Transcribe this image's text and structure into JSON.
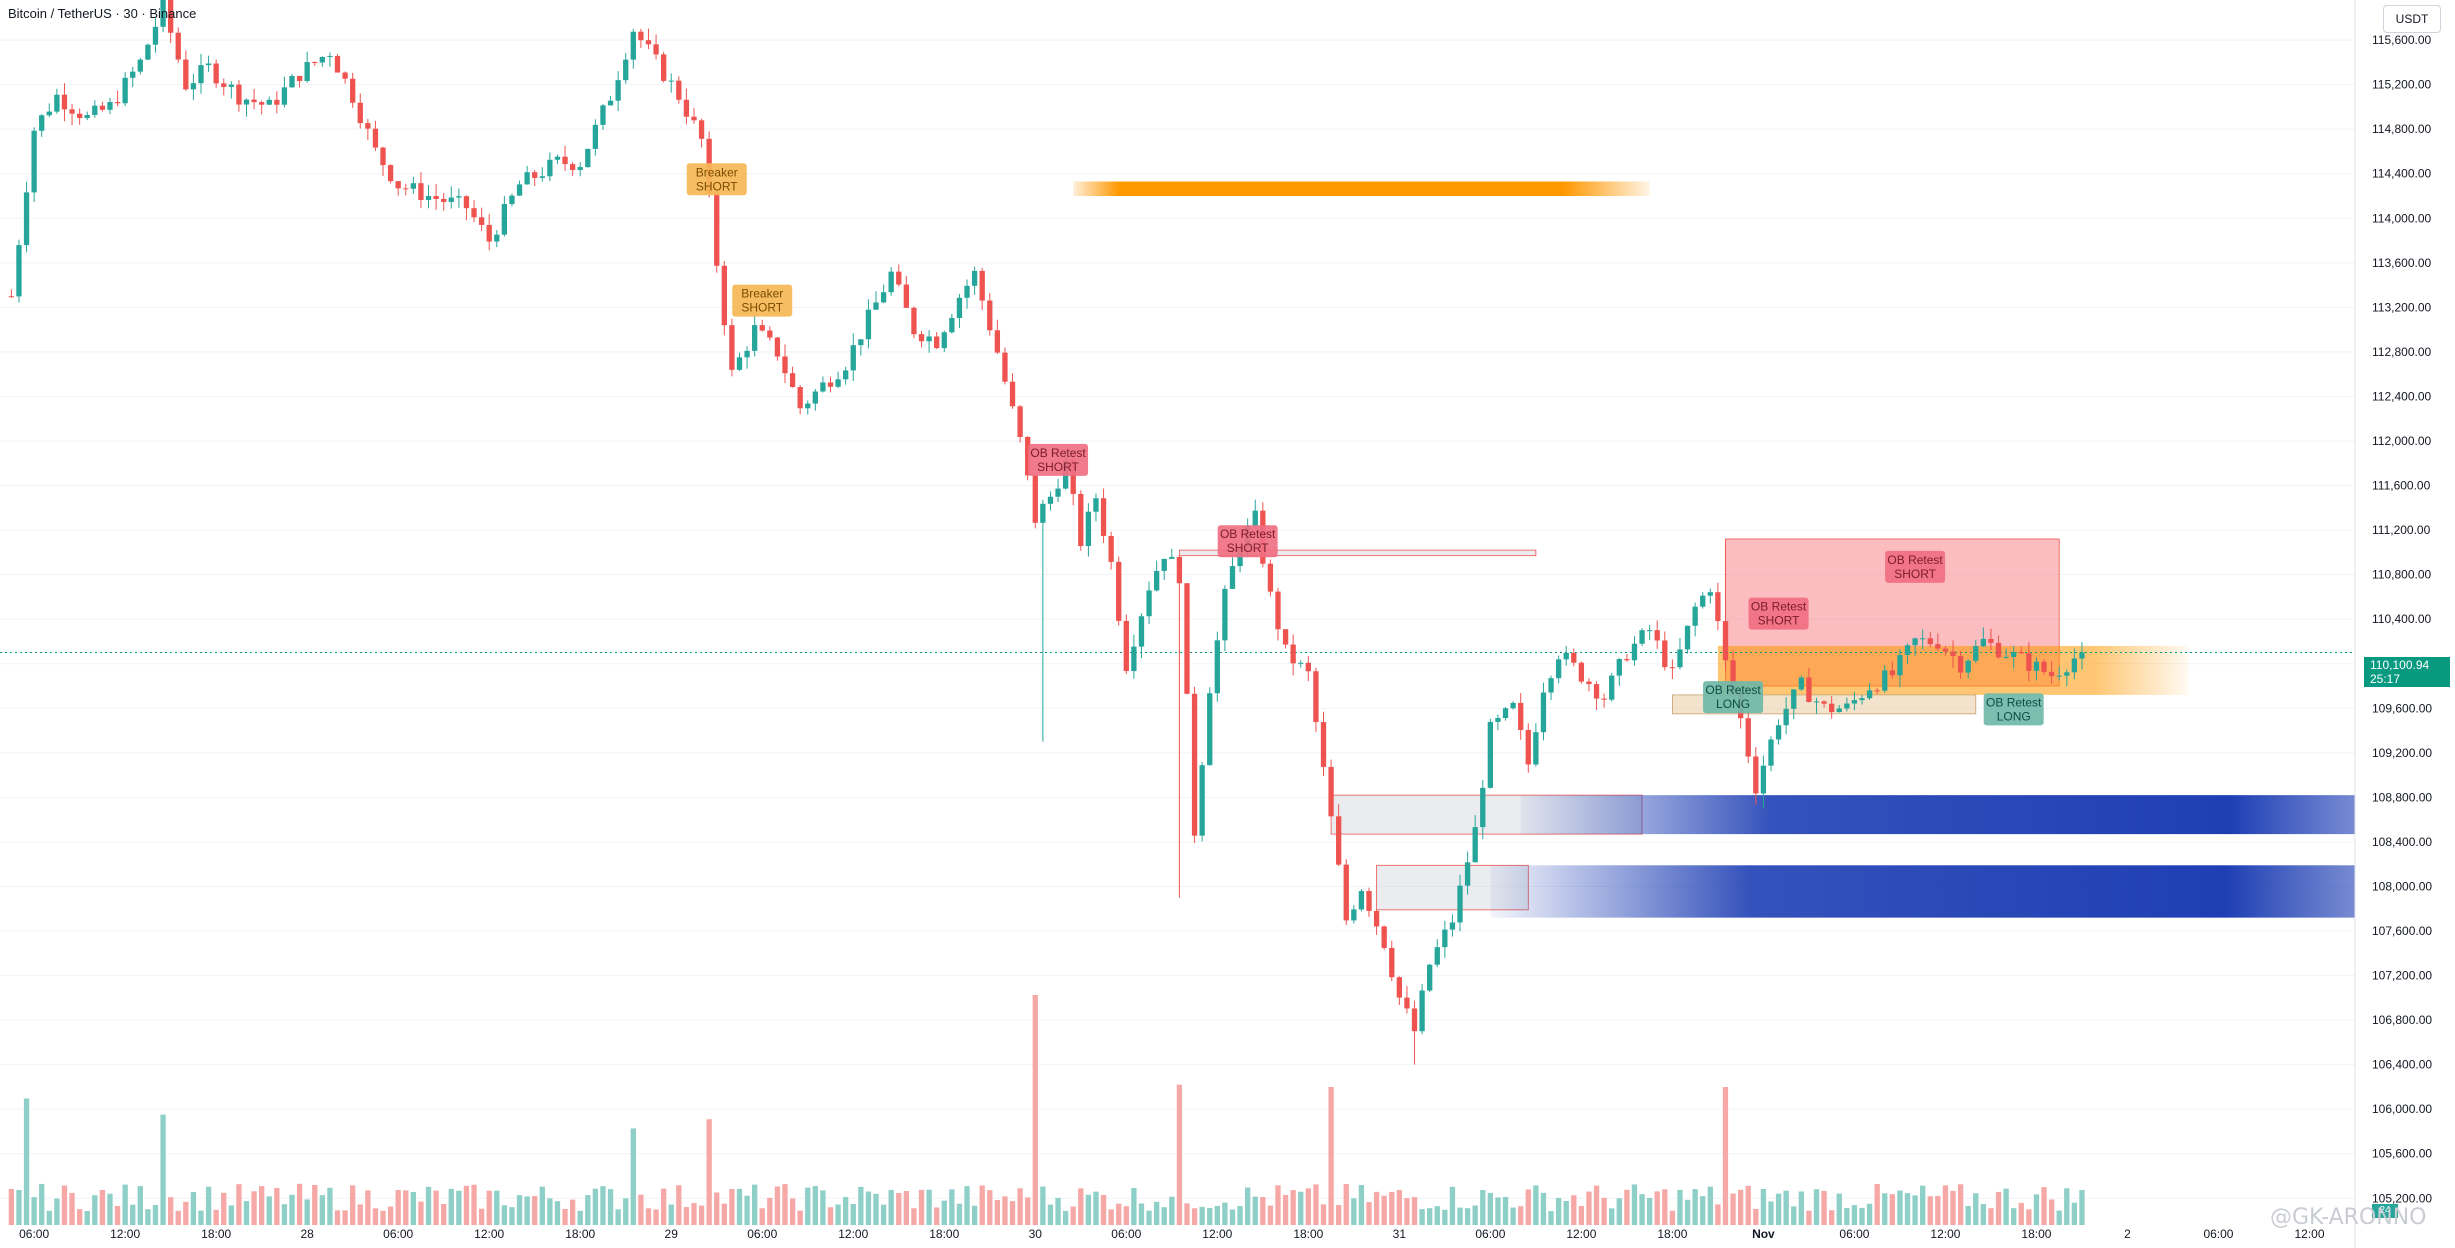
{
  "header": {
    "title": "Bitcoin / TetherUS · 30 · Binance",
    "currency_button": "USDT"
  },
  "price_tag": {
    "price": "110,100.94",
    "countdown": "25:17"
  },
  "volume_tag": "24",
  "watermark": "@GK-ARONNO",
  "signals": [
    {
      "line1": "Breaker",
      "line2": "SHORT",
      "kind": "breaker"
    },
    {
      "line1": "Breaker",
      "line2": "SHORT",
      "kind": "breaker"
    },
    {
      "line1": "OB Retest",
      "line2": "SHORT",
      "kind": "short"
    },
    {
      "line1": "OB Retest",
      "line2": "SHORT",
      "kind": "short"
    },
    {
      "line1": "OB Retest",
      "line2": "SHORT",
      "kind": "short"
    },
    {
      "line1": "OB Retest",
      "line2": "SHORT",
      "kind": "short"
    },
    {
      "line1": "OB Retest",
      "line2": "LONG",
      "kind": "long"
    },
    {
      "line1": "OB Retest",
      "line2": "LONG",
      "kind": "long"
    }
  ],
  "colors": {
    "up": "#26a69a",
    "down": "#ef5350",
    "vol_up": "#8ecfc7",
    "vol_down": "#f6a8a6",
    "orange_zone": "#ff9800",
    "blue_zone": "#1e3fb4",
    "red_zone": "#f77c80",
    "price_line": "#089981"
  },
  "chart_data": {
    "type": "candlestick",
    "symbol": "Bitcoin / TetherUS",
    "interval": "30",
    "exchange": "Binance",
    "y_axis": {
      "ticks": [
        105200,
        105600,
        106000,
        106400,
        106800,
        107200,
        107600,
        108000,
        108400,
        108800,
        109200,
        109600,
        110000,
        110400,
        110800,
        111200,
        111600,
        112000,
        112400,
        112800,
        113200,
        113600,
        114000,
        114400,
        114800,
        115200,
        115600
      ],
      "tick_labels": [
        "105,200.00",
        "105,600.00",
        "106,000.00",
        "106,400.00",
        "106,800.00",
        "107,200.00",
        "107,600.00",
        "108,000.00",
        "108,400.00",
        "108,800.00",
        "109,200.00",
        "109,600.00",
        "110,000.00",
        "110,400.00",
        "110,800.00",
        "111,200.00",
        "111,600.00",
        "112,000.00",
        "112,400.00",
        "112,800.00",
        "113,200.00",
        "113,600.00",
        "114,000.00",
        "114,400.00",
        "114,800.00",
        "115,200.00",
        "115,600.00"
      ],
      "range": [
        104960,
        115960
      ]
    },
    "x_axis": {
      "tick_labels": [
        "06:00",
        "12:00",
        "18:00",
        "28",
        "06:00",
        "12:00",
        "18:00",
        "29",
        "06:00",
        "12:00",
        "18:00",
        "30",
        "06:00",
        "12:00",
        "18:00",
        "31",
        "06:00",
        "12:00",
        "18:00",
        "Nov",
        "06:00",
        "12:00",
        "18:00",
        "2",
        "06:00",
        "12:00"
      ],
      "tick_index": [
        3,
        15,
        27,
        39,
        51,
        63,
        75,
        87,
        99,
        111,
        123,
        135,
        147,
        159,
        171,
        183,
        195,
        207,
        219,
        231,
        243,
        255,
        267,
        279,
        291,
        303
      ],
      "first_bar_index": 0,
      "index_range": [
        -1.5,
        309
      ]
    },
    "last_price": 110100.94,
    "close_path": [
      {
        "i": 0,
        "p": 113300
      },
      {
        "i": 3,
        "p": 114800
      },
      {
        "i": 6,
        "p": 115100
      },
      {
        "i": 10,
        "p": 114900
      },
      {
        "i": 13,
        "p": 115000
      },
      {
        "i": 17,
        "p": 115400
      },
      {
        "i": 20,
        "p": 115900
      },
      {
        "i": 23,
        "p": 115200
      },
      {
        "i": 26,
        "p": 115350
      },
      {
        "i": 30,
        "p": 115100
      },
      {
        "i": 34,
        "p": 115000
      },
      {
        "i": 38,
        "p": 115300
      },
      {
        "i": 42,
        "p": 115500
      },
      {
        "i": 45,
        "p": 115100
      },
      {
        "i": 48,
        "p": 114600
      },
      {
        "i": 51,
        "p": 114300
      },
      {
        "i": 55,
        "p": 114200
      },
      {
        "i": 60,
        "p": 114100
      },
      {
        "i": 63,
        "p": 113800
      },
      {
        "i": 67,
        "p": 114300
      },
      {
        "i": 72,
        "p": 114500
      },
      {
        "i": 75,
        "p": 114500
      },
      {
        "i": 79,
        "p": 115100
      },
      {
        "i": 82,
        "p": 115700
      },
      {
        "i": 85,
        "p": 115400
      },
      {
        "i": 88,
        "p": 115100
      },
      {
        "i": 91,
        "p": 114700
      },
      {
        "i": 93,
        "p": 113600
      },
      {
        "i": 95,
        "p": 112600
      },
      {
        "i": 98,
        "p": 113000
      },
      {
        "i": 101,
        "p": 112800
      },
      {
        "i": 104,
        "p": 112300
      },
      {
        "i": 107,
        "p": 112500
      },
      {
        "i": 110,
        "p": 112700
      },
      {
        "i": 113,
        "p": 113100
      },
      {
        "i": 116,
        "p": 113500
      },
      {
        "i": 119,
        "p": 113000
      },
      {
        "i": 122,
        "p": 112900
      },
      {
        "i": 125,
        "p": 113300
      },
      {
        "i": 127,
        "p": 113500
      },
      {
        "i": 130,
        "p": 112800
      },
      {
        "i": 133,
        "p": 112000
      },
      {
        "i": 135,
        "p": 111300
      },
      {
        "i": 137,
        "p": 111500
      },
      {
        "i": 139,
        "p": 111800
      },
      {
        "i": 141,
        "p": 111100
      },
      {
        "i": 143,
        "p": 111500
      },
      {
        "i": 145,
        "p": 110900
      },
      {
        "i": 147,
        "p": 110000
      },
      {
        "i": 150,
        "p": 110700
      },
      {
        "i": 152,
        "p": 111000
      },
      {
        "i": 154,
        "p": 110800
      },
      {
        "i": 156,
        "p": 108500
      },
      {
        "i": 158,
        "p": 109800
      },
      {
        "i": 160,
        "p": 110600
      },
      {
        "i": 162,
        "p": 111100
      },
      {
        "i": 164,
        "p": 111300
      },
      {
        "i": 166,
        "p": 110600
      },
      {
        "i": 168,
        "p": 110100
      },
      {
        "i": 171,
        "p": 109900
      },
      {
        "i": 174,
        "p": 108600
      },
      {
        "i": 176,
        "p": 107700
      },
      {
        "i": 178,
        "p": 108000
      },
      {
        "i": 181,
        "p": 107500
      },
      {
        "i": 183,
        "p": 107000
      },
      {
        "i": 185,
        "p": 106700
      },
      {
        "i": 187,
        "p": 107300
      },
      {
        "i": 190,
        "p": 107700
      },
      {
        "i": 193,
        "p": 108500
      },
      {
        "i": 195,
        "p": 109400
      },
      {
        "i": 198,
        "p": 109600
      },
      {
        "i": 200,
        "p": 109100
      },
      {
        "i": 202,
        "p": 109800
      },
      {
        "i": 204,
        "p": 110100
      },
      {
        "i": 207,
        "p": 109900
      },
      {
        "i": 210,
        "p": 109700
      },
      {
        "i": 213,
        "p": 110100
      },
      {
        "i": 216,
        "p": 110300
      },
      {
        "i": 219,
        "p": 109900
      },
      {
        "i": 222,
        "p": 110500
      },
      {
        "i": 224,
        "p": 110700
      },
      {
        "i": 226,
        "p": 110000
      },
      {
        "i": 228,
        "p": 109500
      },
      {
        "i": 230,
        "p": 108900
      },
      {
        "i": 233,
        "p": 109500
      },
      {
        "i": 236,
        "p": 109800
      },
      {
        "i": 239,
        "p": 109600
      },
      {
        "i": 242,
        "p": 109600
      },
      {
        "i": 245,
        "p": 109800
      },
      {
        "i": 248,
        "p": 109900
      },
      {
        "i": 251,
        "p": 110200
      },
      {
        "i": 254,
        "p": 110200
      },
      {
        "i": 257,
        "p": 110000
      },
      {
        "i": 260,
        "p": 110200
      },
      {
        "i": 263,
        "p": 110100
      },
      {
        "i": 266,
        "p": 110000
      },
      {
        "i": 269,
        "p": 109900
      },
      {
        "i": 271,
        "p": 110000
      },
      {
        "i": 273,
        "p": 110100
      }
    ],
    "notable_spikes": [
      {
        "i": 136,
        "low": 109300
      },
      {
        "i": 154,
        "low": 107900
      },
      {
        "i": 185,
        "low": 106400
      },
      {
        "i": 226,
        "high": 111100
      },
      {
        "i": 231,
        "low": 108700
      }
    ],
    "volume_spikes": [
      {
        "i": 2,
        "v": 0.55
      },
      {
        "i": 20,
        "v": 0.48
      },
      {
        "i": 82,
        "v": 0.42
      },
      {
        "i": 92,
        "v": 0.46
      },
      {
        "i": 135,
        "v": 1.0
      },
      {
        "i": 154,
        "v": 0.61
      },
      {
        "i": 174,
        "v": 0.6
      },
      {
        "i": 226,
        "v": 0.6
      }
    ],
    "zones": [
      {
        "kind": "orange_band",
        "i1": 140,
        "i2": 216,
        "p1": 114200,
        "p2": 114330
      },
      {
        "kind": "grey_box",
        "i1": 154,
        "i2": 201,
        "p1": 110970,
        "p2": 111020
      },
      {
        "kind": "grey_box",
        "i1": 174,
        "i2": 215,
        "p1": 108470,
        "p2": 108820
      },
      {
        "kind": "grey_box",
        "i1": 180,
        "i2": 200,
        "p1": 107790,
        "p2": 108190
      },
      {
        "kind": "blue_band",
        "i1": 199,
        "i2": 309,
        "p1": 108470,
        "p2": 108820
      },
      {
        "kind": "blue_band",
        "i1": 195,
        "i2": 309,
        "p1": 107720,
        "p2": 108190
      },
      {
        "kind": "red_box",
        "i1": 226,
        "i2": 270,
        "p1": 109800,
        "p2": 111120
      },
      {
        "kind": "orange_band",
        "i1": 225,
        "i2": 287,
        "p1": 109720,
        "p2": 110160
      },
      {
        "kind": "tan_box",
        "i1": 219,
        "i2": 259,
        "p1": 109550,
        "p2": 109720
      }
    ]
  }
}
